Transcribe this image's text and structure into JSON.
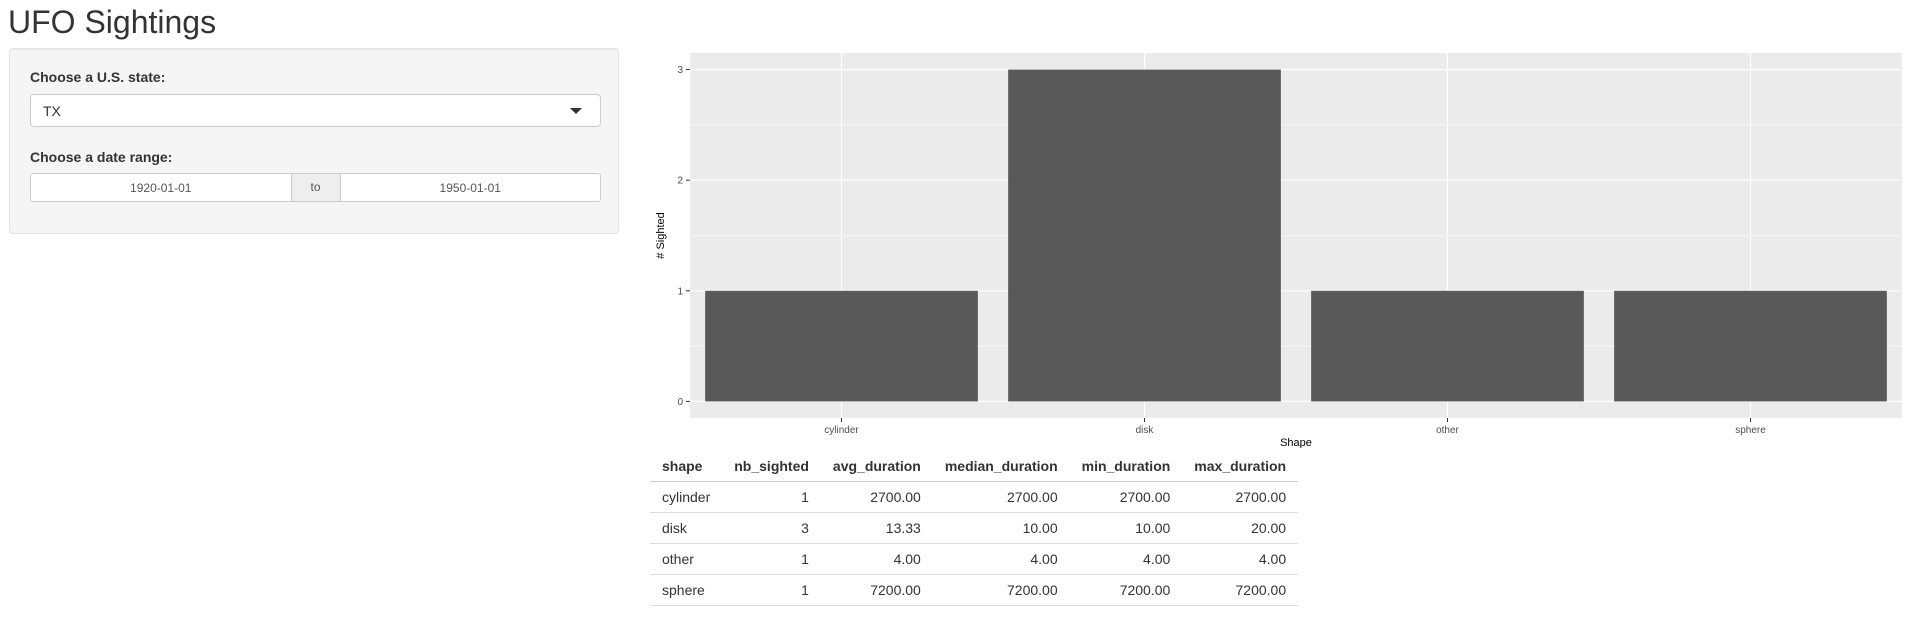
{
  "header": {
    "title": "UFO Sightings"
  },
  "sidebar": {
    "state_label": "Choose a U.S. state:",
    "state_value": "TX",
    "date_label": "Choose a date range:",
    "date_start": "1920-01-01",
    "date_separator": "to",
    "date_end": "1950-01-01"
  },
  "chart_data": {
    "type": "bar",
    "categories": [
      "cylinder",
      "disk",
      "other",
      "sphere"
    ],
    "values": [
      1,
      3,
      1,
      1
    ],
    "xlabel": "Shape",
    "ylabel": "# Sighted",
    "ylim": [
      0,
      3
    ],
    "yticks": [
      0,
      1,
      2,
      3
    ],
    "grid": true,
    "colors": {
      "panel": "#ebebeb",
      "bar": "#595959",
      "grid": "#ffffff"
    }
  },
  "table": {
    "columns": [
      "shape",
      "nb_sighted",
      "avg_duration",
      "median_duration",
      "min_duration",
      "max_duration"
    ],
    "rows": [
      [
        "cylinder",
        "1",
        "2700.00",
        "2700.00",
        "2700.00",
        "2700.00"
      ],
      [
        "disk",
        "3",
        "13.33",
        "10.00",
        "10.00",
        "20.00"
      ],
      [
        "other",
        "1",
        "4.00",
        "4.00",
        "4.00",
        "4.00"
      ],
      [
        "sphere",
        "1",
        "7200.00",
        "7200.00",
        "7200.00",
        "7200.00"
      ]
    ]
  }
}
